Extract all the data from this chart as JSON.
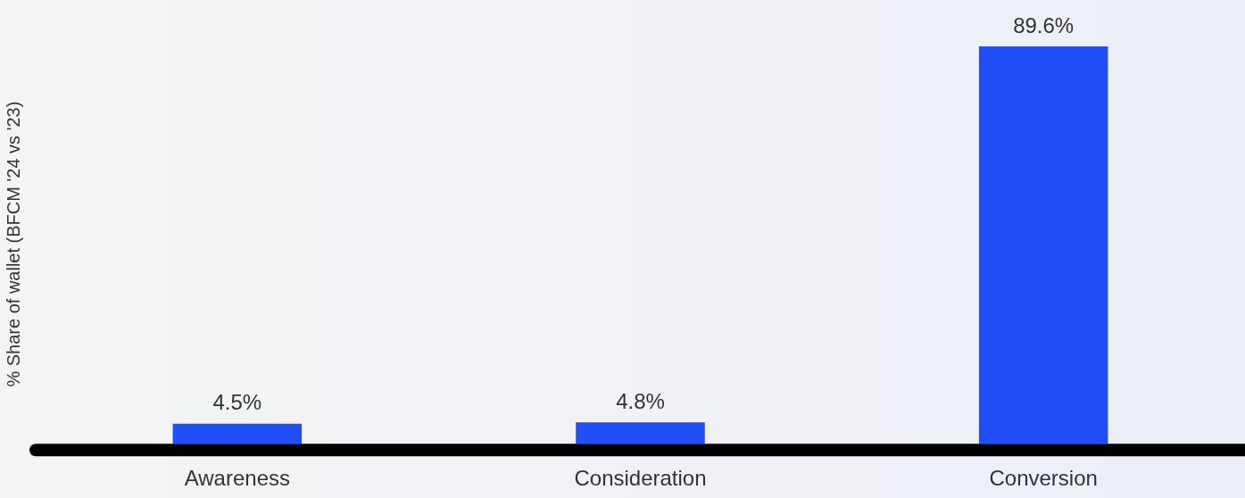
{
  "chart_data": {
    "type": "bar",
    "ylabel": "% Share of wallet (BFCM '24 vs '23)",
    "categories": [
      "Awareness",
      "Consideration",
      "Conversion"
    ],
    "values": [
      4.5,
      4.8,
      89.6
    ],
    "color": "#1f4ff5",
    "data_labels": true,
    "value_labels": [
      "4.5%",
      "4.8%",
      "89.6%"
    ],
    "grid": false,
    "legend": false
  }
}
